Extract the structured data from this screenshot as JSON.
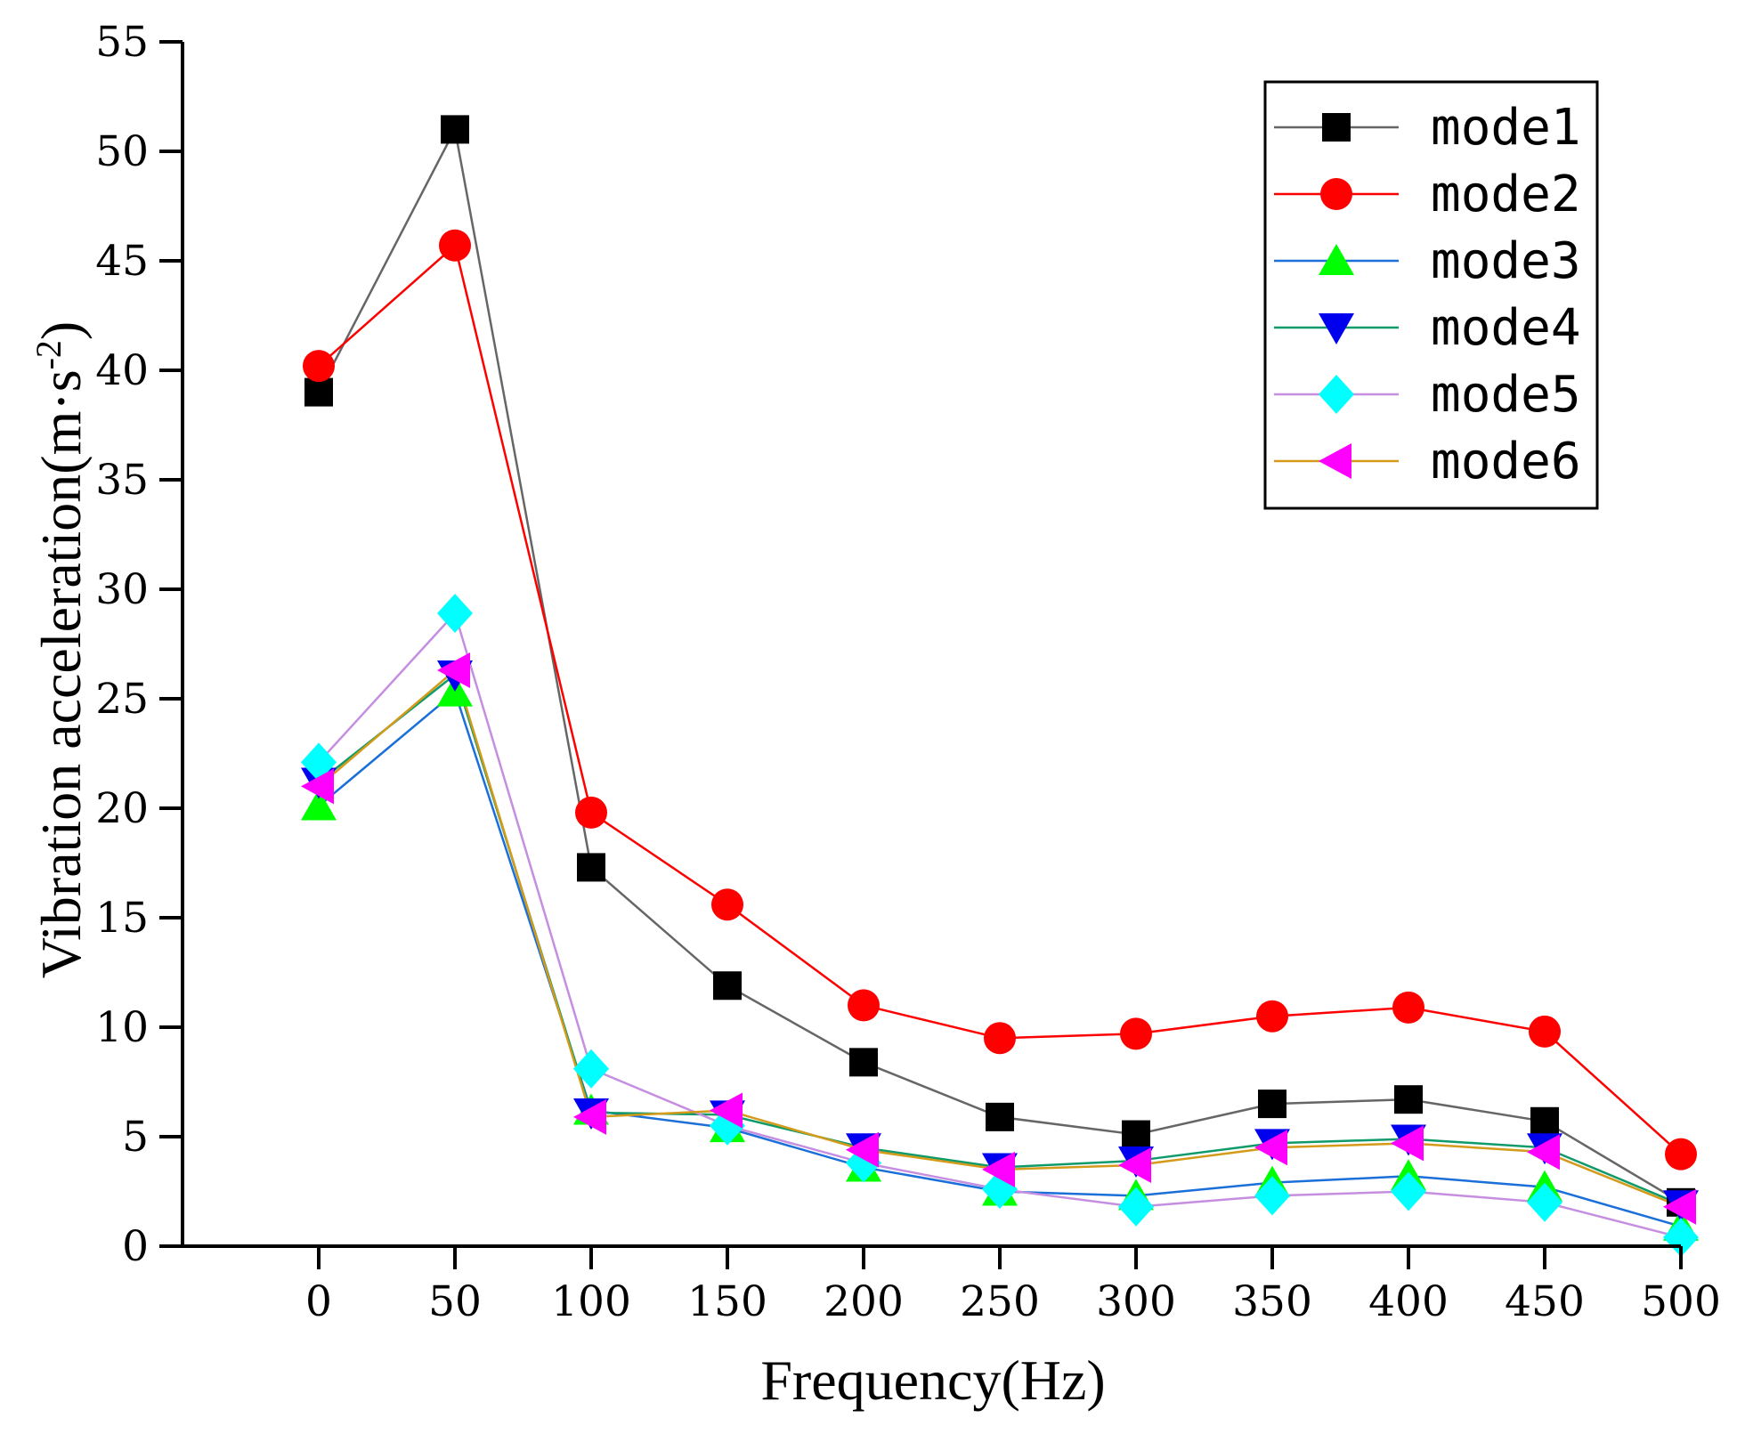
{
  "chart_data": {
    "type": "line",
    "title": "",
    "xlabel": "Frequency(Hz)",
    "ylabel": "Vibration acceleration(m·s",
    "ylabel_sup": "-2",
    "ylabel_end": ")",
    "xlim": [
      -50,
      500
    ],
    "ylim": [
      0,
      55
    ],
    "x": [
      0,
      50,
      100,
      150,
      200,
      250,
      300,
      350,
      400,
      450,
      500
    ],
    "xticks": [
      0,
      50,
      100,
      150,
      200,
      250,
      300,
      350,
      400,
      450,
      500
    ],
    "yticks": [
      0,
      5,
      10,
      15,
      20,
      25,
      30,
      35,
      40,
      45,
      50,
      55
    ],
    "legend_position": "top-right",
    "series": [
      {
        "name": "mode1",
        "color": "#000000",
        "line_color": "#666666",
        "marker": "square",
        "values": [
          39.0,
          51.0,
          17.3,
          11.9,
          8.4,
          5.9,
          5.1,
          6.5,
          6.7,
          5.7,
          2.0
        ]
      },
      {
        "name": "mode2",
        "color": "#ff0000",
        "line_color": "#ff0000",
        "marker": "circle",
        "values": [
          40.2,
          45.7,
          19.8,
          15.6,
          11.0,
          9.5,
          9.7,
          10.5,
          10.9,
          9.8,
          4.2
        ]
      },
      {
        "name": "mode3",
        "color": "#00ff00",
        "line_color": "#1a6fd9",
        "marker": "triangle-up",
        "values": [
          20.1,
          25.3,
          6.2,
          5.4,
          3.6,
          2.5,
          2.3,
          2.9,
          3.2,
          2.7,
          0.9
        ]
      },
      {
        "name": "mode4",
        "color": "#0000ee",
        "line_color": "#0f9a6a",
        "marker": "triangle-down",
        "values": [
          21.2,
          26.1,
          6.1,
          6.0,
          4.5,
          3.6,
          3.9,
          4.7,
          4.9,
          4.5,
          1.9
        ]
      },
      {
        "name": "mode5",
        "color": "#00ffff",
        "line_color": "#c58ee0",
        "marker": "diamond",
        "values": [
          22.1,
          28.9,
          8.1,
          5.5,
          3.8,
          2.6,
          1.8,
          2.3,
          2.5,
          2.0,
          0.4
        ]
      },
      {
        "name": "mode6",
        "color": "#ff00ff",
        "line_color": "#d49a1a",
        "marker": "triangle-left",
        "values": [
          21.0,
          26.3,
          5.9,
          6.2,
          4.4,
          3.5,
          3.7,
          4.5,
          4.7,
          4.3,
          1.8
        ]
      }
    ]
  }
}
